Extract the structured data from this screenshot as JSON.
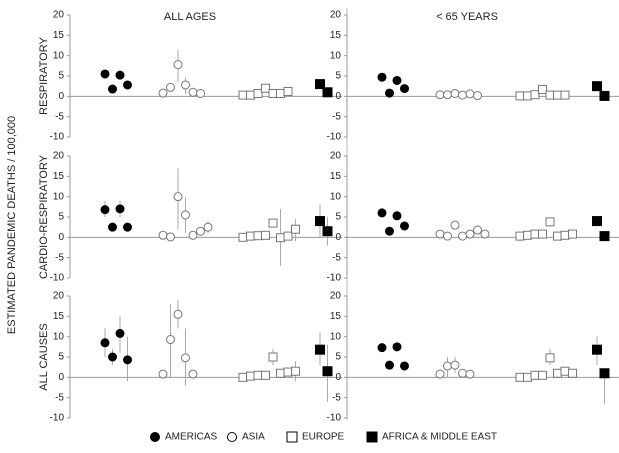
{
  "ylabel": "ESTIMATED PANDEMIC DEATHS / 100,000",
  "legend": [
    {
      "name": "AMERICAS",
      "marker": "circle",
      "fill": "#000000",
      "stroke": "#000000"
    },
    {
      "name": "ASIA",
      "marker": "circle",
      "fill": "#ffffff",
      "stroke": "#777777"
    },
    {
      "name": "EUROPE",
      "marker": "square",
      "fill": "#ffffff",
      "stroke": "#777777"
    },
    {
      "name": "AFRICA  &  MIDDLE EAST",
      "marker": "square",
      "fill": "#000000",
      "stroke": "#000000"
    }
  ],
  "chart_data": [
    {
      "type": "scatter",
      "title": "ALL AGES",
      "ylabel": "RESPIRATORY",
      "ylim": [
        -10,
        20
      ],
      "yticks": [
        -10,
        -5,
        0,
        5,
        10,
        15,
        20
      ],
      "series": [
        {
          "values": [
            5.5,
            1.8,
            5.2,
            2.8
          ]
        },
        {
          "values": [
            0.8,
            2.2,
            7.8,
            2.8,
            1.0,
            0.7
          ],
          "lower": [
            null,
            null,
            3.5,
            0.5,
            null,
            null
          ],
          "upper": [
            null,
            null,
            11.5,
            4.5,
            null,
            null
          ]
        },
        {
          "values": [
            0.3,
            0.3,
            0.7,
            2.0,
            0.7,
            0.7,
            1.2
          ]
        },
        {
          "values": [
            3.0,
            1.0
          ]
        }
      ]
    },
    {
      "type": "scatter",
      "title": "< 65 YEARS",
      "ylim": [
        -10,
        20
      ],
      "yticks": [
        -10,
        -5,
        0,
        5,
        10,
        15,
        20
      ],
      "series": [
        {
          "values": [
            4.7,
            0.8,
            3.9,
            1.9
          ]
        },
        {
          "values": [
            0.4,
            0.4,
            0.7,
            0.3,
            0.6,
            0.2
          ]
        },
        {
          "values": [
            0.1,
            0.1,
            0.4,
            1.7,
            0.3,
            0.3,
            0.3
          ]
        },
        {
          "values": [
            2.5,
            0.1
          ]
        }
      ]
    },
    {
      "type": "scatter",
      "ylabel": "CARDIO-RESPIRATORY",
      "ylim": [
        -10,
        20
      ],
      "yticks": [
        -10,
        -5,
        0,
        5,
        10,
        15,
        20
      ],
      "series": [
        {
          "values": [
            6.8,
            2.5,
            7.0,
            2.5
          ],
          "lower": [
            5,
            null,
            5,
            null
          ],
          "upper": [
            9,
            null,
            9,
            null
          ]
        },
        {
          "values": [
            0.5,
            0.1,
            10,
            5.5,
            0.5,
            1.5,
            2.5
          ],
          "lower": [
            null,
            null,
            2,
            1,
            null,
            null,
            1
          ],
          "upper": [
            null,
            null,
            17,
            10,
            null,
            null,
            4
          ]
        },
        {
          "values": [
            0,
            0.3,
            0.4,
            0.5,
            3.5,
            -0.1,
            0.3,
            2.0
          ],
          "lower": [
            null,
            null,
            null,
            null,
            null,
            -7,
            null,
            -1
          ],
          "upper": [
            null,
            null,
            null,
            null,
            null,
            7,
            null,
            4.5
          ]
        },
        {
          "values": [
            4.0,
            1.5
          ],
          "lower": [
            0,
            -2
          ],
          "upper": [
            8,
            5
          ]
        }
      ]
    },
    {
      "type": "scatter",
      "ylim": [
        -10,
        20
      ],
      "yticks": [
        -10,
        -5,
        0,
        5,
        10,
        15,
        20
      ],
      "series": [
        {
          "values": [
            6.0,
            1.5,
            5.3,
            2.8
          ]
        },
        {
          "values": [
            0.8,
            0.3,
            3.0,
            0.3,
            0.8,
            1.8,
            0.8
          ]
        },
        {
          "values": [
            0.3,
            0.5,
            0.8,
            0.8,
            3.8,
            0.3,
            0.5,
            0.8
          ]
        },
        {
          "values": [
            4.0,
            0.3
          ]
        }
      ]
    },
    {
      "type": "scatter",
      "ylabel": "ALL CAUSES",
      "ylim": [
        -10,
        20
      ],
      "yticks": [
        -10,
        -5,
        0,
        5,
        10,
        15,
        20
      ],
      "series": [
        {
          "values": [
            8.5,
            5.0,
            10.8,
            4.3
          ],
          "lower": [
            5,
            3,
            6,
            -1
          ],
          "upper": [
            12,
            7,
            15,
            10
          ]
        },
        {
          "values": [
            0.8,
            9.3,
            15.5,
            4.8,
            0.8
          ],
          "lower": [
            null,
            0,
            12,
            -2,
            null
          ],
          "upper": [
            null,
            18,
            19,
            12,
            null
          ]
        },
        {
          "values": [
            0,
            0.3,
            0.5,
            0.5,
            5.0,
            1.0,
            1.3,
            1.5
          ],
          "lower": [
            null,
            null,
            null,
            null,
            3,
            null,
            null,
            -1
          ],
          "upper": [
            null,
            null,
            null,
            null,
            7,
            null,
            null,
            4
          ]
        },
        {
          "values": [
            6.8,
            1.5
          ],
          "lower": [
            3,
            -6
          ],
          "upper": [
            11,
            8
          ]
        }
      ]
    },
    {
      "type": "scatter",
      "ylim": [
        -10,
        20
      ],
      "yticks": [
        -10,
        -5,
        0,
        5,
        10,
        15,
        20
      ],
      "series": [
        {
          "values": [
            7.3,
            3.0,
            7.5,
            2.8
          ]
        },
        {
          "values": [
            0.8,
            2.8,
            3.0,
            1.0,
            0.8
          ],
          "lower": [
            null,
            0,
            1,
            null,
            null
          ],
          "upper": [
            null,
            5,
            5,
            null,
            null
          ]
        },
        {
          "values": [
            0,
            0,
            0.5,
            0.5,
            4.8,
            1.0,
            1.5,
            1.0
          ],
          "lower": [
            null,
            null,
            null,
            null,
            3,
            null,
            null,
            null
          ],
          "upper": [
            null,
            null,
            null,
            null,
            7,
            null,
            null,
            null
          ]
        },
        {
          "values": [
            6.8,
            1.0
          ],
          "lower": [
            3,
            -6.5
          ],
          "upper": [
            10,
            null
          ]
        }
      ]
    }
  ]
}
